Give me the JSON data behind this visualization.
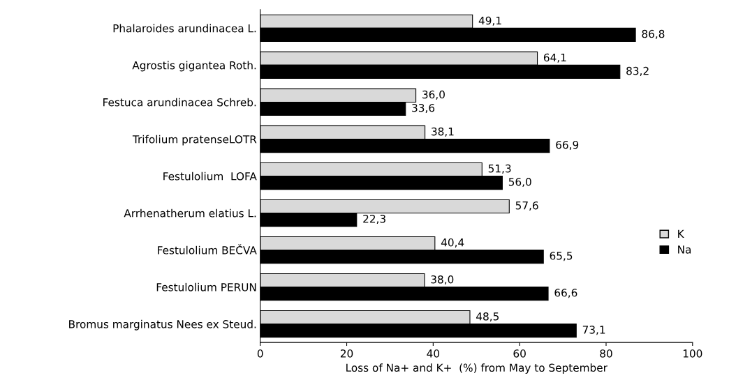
{
  "chart_data": {
    "type": "bar",
    "orientation": "horizontal",
    "xlabel": "Loss of Na+ and K+  (%) from May to September",
    "categories": [
      "Phalaroides arundinacea L.",
      "Agrostis gigantea Roth.",
      "Festuca arundinacea Schreb.",
      "Trifolium pratenseLOTR",
      "Festulolium  LOFA",
      "Arrhenatherum elatius L.",
      "Festulolium BEČVA",
      "Festulolium PERUN",
      "Bromus marginatus Nees ex Steud."
    ],
    "series": [
      {
        "name": "K",
        "color": "#d9d9d9",
        "values": [
          49.1,
          64.1,
          36.0,
          38.1,
          51.3,
          57.6,
          40.4,
          38.0,
          48.5
        ],
        "value_labels": [
          "49,1",
          "64,1",
          "36,0",
          "38,1",
          "51,3",
          "57,6",
          "40,4",
          "38,0",
          "48,5"
        ]
      },
      {
        "name": "Na",
        "color": "#000000",
        "values": [
          86.8,
          83.2,
          33.6,
          66.9,
          56.0,
          22.3,
          65.5,
          66.6,
          73.1
        ],
        "value_labels": [
          "86,8",
          "83,2",
          "33,6",
          "66,9",
          "56,0",
          "22,3",
          "65,5",
          "66,6",
          "73,1"
        ]
      }
    ],
    "xlim": [
      0,
      100
    ],
    "xticks": [
      0,
      20,
      40,
      60,
      80,
      100
    ],
    "grid": false,
    "legend": "right"
  }
}
